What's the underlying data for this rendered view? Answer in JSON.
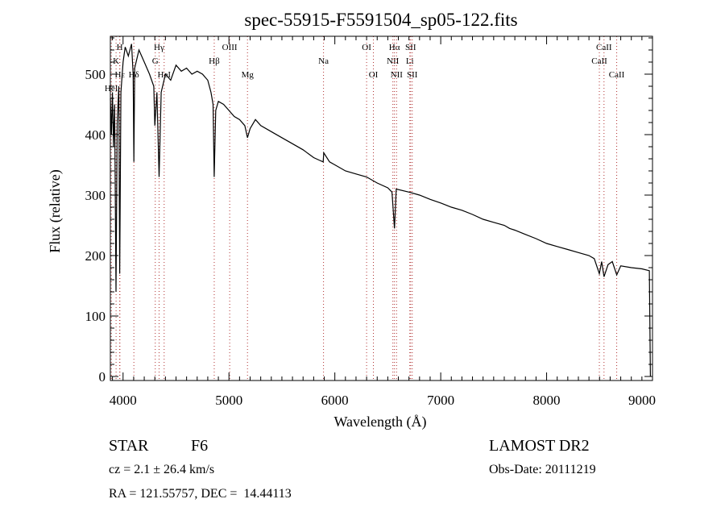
{
  "chart_data": {
    "type": "line",
    "title": "spec-55915-F5591504_sp05-122.fits",
    "xlabel": "Wavelength (Å)",
    "ylabel": "Flux (relative)",
    "xlim": [
      3880,
      9000
    ],
    "ylim": [
      0,
      563
    ],
    "xticks": [
      4000,
      5000,
      6000,
      7000,
      8000,
      9000
    ],
    "yticks": [
      0,
      100,
      200,
      300,
      400,
      500
    ],
    "grid": false,
    "series": [
      {
        "name": "spectrum",
        "color": "#000000",
        "points": [
          [
            3880,
            460
          ],
          [
            3890,
            400
          ],
          [
            3900,
            470
          ],
          [
            3910,
            380
          ],
          [
            3920,
            450
          ],
          [
            3933,
            140
          ],
          [
            3945,
            420
          ],
          [
            3960,
            480
          ],
          [
            3968,
            170
          ],
          [
            3980,
            470
          ],
          [
            4000,
            520
          ],
          [
            4020,
            545
          ],
          [
            4050,
            530
          ],
          [
            4080,
            550
          ],
          [
            4095,
            500
          ],
          [
            4102,
            355
          ],
          [
            4110,
            510
          ],
          [
            4150,
            540
          ],
          [
            4200,
            520
          ],
          [
            4250,
            500
          ],
          [
            4290,
            480
          ],
          [
            4300,
            415
          ],
          [
            4320,
            470
          ],
          [
            4340,
            330
          ],
          [
            4360,
            470
          ],
          [
            4400,
            500
          ],
          [
            4450,
            490
          ],
          [
            4500,
            515
          ],
          [
            4550,
            505
          ],
          [
            4600,
            510
          ],
          [
            4650,
            500
          ],
          [
            4700,
            505
          ],
          [
            4750,
            500
          ],
          [
            4800,
            490
          ],
          [
            4830,
            470
          ],
          [
            4850,
            450
          ],
          [
            4861,
            330
          ],
          [
            4875,
            440
          ],
          [
            4900,
            455
          ],
          [
            4950,
            450
          ],
          [
            5000,
            440
          ],
          [
            5050,
            430
          ],
          [
            5100,
            425
          ],
          [
            5150,
            415
          ],
          [
            5175,
            395
          ],
          [
            5200,
            410
          ],
          [
            5250,
            425
          ],
          [
            5300,
            415
          ],
          [
            5400,
            405
          ],
          [
            5500,
            395
          ],
          [
            5600,
            385
          ],
          [
            5700,
            375
          ],
          [
            5800,
            362
          ],
          [
            5850,
            358
          ],
          [
            5890,
            355
          ],
          [
            5895,
            370
          ],
          [
            5950,
            355
          ],
          [
            6000,
            350
          ],
          [
            6100,
            340
          ],
          [
            6200,
            335
          ],
          [
            6300,
            330
          ],
          [
            6400,
            320
          ],
          [
            6500,
            312
          ],
          [
            6540,
            305
          ],
          [
            6563,
            245
          ],
          [
            6580,
            310
          ],
          [
            6700,
            305
          ],
          [
            6800,
            300
          ],
          [
            6900,
            293
          ],
          [
            7000,
            287
          ],
          [
            7100,
            280
          ],
          [
            7200,
            275
          ],
          [
            7300,
            268
          ],
          [
            7400,
            260
          ],
          [
            7500,
            255
          ],
          [
            7600,
            250
          ],
          [
            7650,
            245
          ],
          [
            7700,
            242
          ],
          [
            7800,
            235
          ],
          [
            7900,
            228
          ],
          [
            8000,
            220
          ],
          [
            8100,
            215
          ],
          [
            8200,
            210
          ],
          [
            8300,
            205
          ],
          [
            8400,
            200
          ],
          [
            8450,
            195
          ],
          [
            8498,
            170
          ],
          [
            8520,
            190
          ],
          [
            8542,
            165
          ],
          [
            8580,
            185
          ],
          [
            8620,
            190
          ],
          [
            8662,
            168
          ],
          [
            8700,
            183
          ],
          [
            8800,
            180
          ],
          [
            8900,
            178
          ],
          [
            8970,
            175
          ],
          [
            8980,
            0
          ]
        ]
      }
    ],
    "line_markers": {
      "color": "#b03030",
      "lines": [
        {
          "label": "HeI",
          "wavelength": 3889,
          "row": 3
        },
        {
          "label": "K",
          "wavelength": 3934,
          "row": 2
        },
        {
          "label": "H",
          "wavelength": 3968,
          "row": 1
        },
        {
          "label": "Hε",
          "wavelength": 3970,
          "row": 3
        },
        {
          "label": "Hδ",
          "wavelength": 4102,
          "row": 3
        },
        {
          "label": "G",
          "wavelength": 4304,
          "row": 2
        },
        {
          "label": "Hγ",
          "wavelength": 4340,
          "row": 1
        },
        {
          "label": "HeI",
          "wavelength": 4388,
          "row": 3
        },
        {
          "label": "Hβ",
          "wavelength": 4861,
          "row": 2
        },
        {
          "label": "OIII",
          "wavelength": 5007,
          "row": 1
        },
        {
          "label": "Mg",
          "wavelength": 5175,
          "row": 3
        },
        {
          "label": "Na",
          "wavelength": 5893,
          "row": 2
        },
        {
          "label": "OI",
          "wavelength": 6300,
          "row": 1
        },
        {
          "label": "OI",
          "wavelength": 6364,
          "row": 3
        },
        {
          "label": "NII",
          "wavelength": 6548,
          "row": 2
        },
        {
          "label": "Hα",
          "wavelength": 6563,
          "row": 1
        },
        {
          "label": "NII",
          "wavelength": 6583,
          "row": 3
        },
        {
          "label": "Li",
          "wavelength": 6708,
          "row": 2
        },
        {
          "label": "SII",
          "wavelength": 6716,
          "row": 1
        },
        {
          "label": "SII",
          "wavelength": 6731,
          "row": 3
        },
        {
          "label": "CaII",
          "wavelength": 8542,
          "row": 1
        },
        {
          "label": "CaII",
          "wavelength": 8498,
          "row": 2
        },
        {
          "label": "CaII",
          "wavelength": 8662,
          "row": 3
        }
      ]
    }
  },
  "info": {
    "class_label": "STAR",
    "subclass": "F6",
    "cz": "cz = 2.1 ± 26.4 km/s",
    "coords": "RA = 121.55757, DEC =  14.44113",
    "survey": "LAMOST DR2",
    "obs_date": "Obs-Date: 20111219"
  }
}
